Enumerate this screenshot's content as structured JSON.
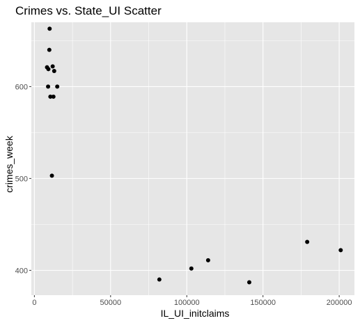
{
  "chart_data": {
    "type": "scatter",
    "title": "Crimes vs. State_UI Scatter",
    "xlabel": "IL_UI_initclaims",
    "ylabel": "crimes_week",
    "xlim": [
      -2000,
      210000
    ],
    "ylim": [
      373,
      670
    ],
    "x_ticks": [
      0,
      50000,
      100000,
      150000,
      200000
    ],
    "x_tick_labels": [
      "0",
      "50000",
      "100000",
      "150000",
      "200000"
    ],
    "y_ticks": [
      400,
      500,
      600
    ],
    "y_tick_labels": [
      "400",
      "500",
      "600"
    ],
    "grid": true,
    "panel_color": "#e6e6e6",
    "grid_color": "#ffffff",
    "point_color": "#000000",
    "points": [
      {
        "x": 10000,
        "y": 663
      },
      {
        "x": 9800,
        "y": 640
      },
      {
        "x": 8300,
        "y": 621
      },
      {
        "x": 9200,
        "y": 619
      },
      {
        "x": 12000,
        "y": 622
      },
      {
        "x": 13000,
        "y": 617
      },
      {
        "x": 9000,
        "y": 600
      },
      {
        "x": 15000,
        "y": 600
      },
      {
        "x": 10500,
        "y": 589
      },
      {
        "x": 12500,
        "y": 589
      },
      {
        "x": 11500,
        "y": 503
      },
      {
        "x": 82000,
        "y": 390
      },
      {
        "x": 103000,
        "y": 402
      },
      {
        "x": 114000,
        "y": 411
      },
      {
        "x": 141000,
        "y": 387
      },
      {
        "x": 179000,
        "y": 431
      },
      {
        "x": 201000,
        "y": 422
      }
    ]
  }
}
